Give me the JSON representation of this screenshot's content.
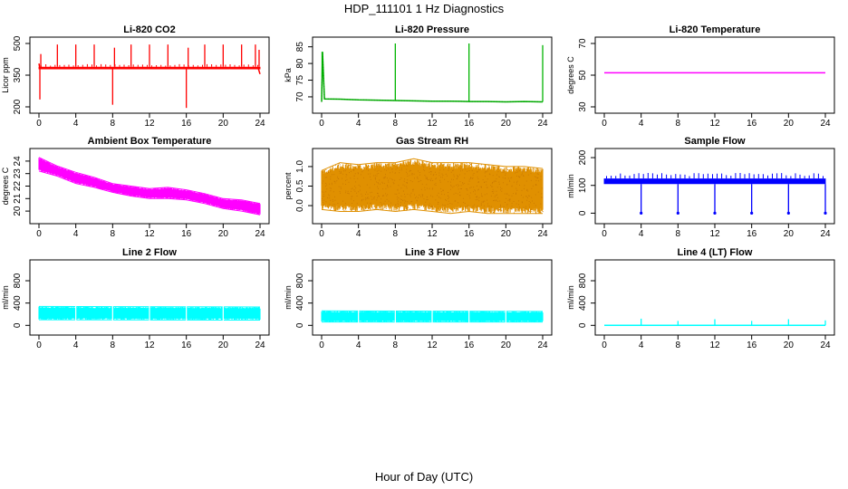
{
  "figure": {
    "title": "HDP_111101  1 Hz Diagnostics",
    "xlabel": "Hour of Day (UTC)"
  },
  "chart_data": [
    {
      "type": "line",
      "title": "Li-820 CO2",
      "ylabel": "Licor ppm",
      "color": "#ff0000",
      "xlim": [
        0,
        24
      ],
      "ylim": [
        200,
        500
      ],
      "xticks": [
        0,
        4,
        8,
        12,
        16,
        20,
        24
      ],
      "yticks": [
        200,
        350,
        500
      ],
      "band": {
        "low": 378,
        "high": 390
      },
      "x": [
        0,
        0.1,
        1,
        2,
        3,
        4,
        5,
        6,
        7,
        8,
        9,
        10,
        11,
        12,
        13,
        14,
        15,
        16,
        17,
        18,
        19,
        20,
        21,
        22,
        23,
        23.8,
        24
      ],
      "y": [
        405,
        382,
        384,
        383,
        384,
        385,
        384,
        383,
        384,
        383,
        384,
        385,
        384,
        383,
        384,
        385,
        384,
        383,
        384,
        384,
        383,
        384,
        384,
        383,
        384,
        384,
        355
      ],
      "spikes": [
        {
          "x": 0.1,
          "y": 235
        },
        {
          "x": 0.2,
          "y": 450
        },
        {
          "x": 2,
          "y": 495
        },
        {
          "x": 4,
          "y": 495
        },
        {
          "x": 6,
          "y": 495
        },
        {
          "x": 8,
          "y": 210
        },
        {
          "x": 8.2,
          "y": 480
        },
        {
          "x": 10,
          "y": 495
        },
        {
          "x": 12,
          "y": 495
        },
        {
          "x": 14,
          "y": 495
        },
        {
          "x": 16,
          "y": 195
        },
        {
          "x": 16.2,
          "y": 480
        },
        {
          "x": 18,
          "y": 495
        },
        {
          "x": 20,
          "y": 495
        },
        {
          "x": 22,
          "y": 495
        },
        {
          "x": 23.5,
          "y": 495
        },
        {
          "x": 23.9,
          "y": 470
        }
      ]
    },
    {
      "type": "line",
      "title": "Li-820 Pressure",
      "ylabel": "kPa",
      "color": "#00b400",
      "xlim": [
        0,
        24
      ],
      "ylim": [
        67,
        86
      ],
      "xticks": [
        0,
        4,
        8,
        12,
        16,
        20,
        24
      ],
      "yticks": [
        70,
        75,
        80,
        85
      ],
      "x": [
        0,
        0.1,
        0.3,
        2,
        4,
        6,
        8,
        10,
        12,
        14,
        16,
        18,
        20,
        22,
        23.9,
        24
      ],
      "y": [
        68.5,
        83.5,
        69.4,
        69.3,
        69.1,
        69.0,
        68.9,
        68.8,
        68.7,
        68.7,
        68.6,
        68.6,
        68.5,
        68.6,
        68.5,
        68.5
      ],
      "spikes": [
        {
          "x": 0.05,
          "y": 83.5
        },
        {
          "x": 8,
          "y": 86
        },
        {
          "x": 16,
          "y": 86
        },
        {
          "x": 24,
          "y": 85.5
        }
      ]
    },
    {
      "type": "line",
      "title": "Li-820 Temperature",
      "ylabel": "degrees C",
      "color": "#ff00ff",
      "xlim": [
        0,
        24
      ],
      "ylim": [
        30,
        70
      ],
      "xticks": [
        0,
        4,
        8,
        12,
        16,
        20,
        24
      ],
      "yticks": [
        30,
        50,
        70
      ],
      "x": [
        0,
        24
      ],
      "y": [
        51.5,
        51.5
      ]
    },
    {
      "type": "area",
      "title": "Ambient Box Temperature",
      "ylabel": "degrees C",
      "color": "#ff00ff",
      "xlim": [
        0,
        24
      ],
      "ylim": [
        19.5,
        24.5
      ],
      "xticks": [
        0,
        4,
        8,
        12,
        16,
        20,
        24
      ],
      "yticks": [
        20,
        21,
        22,
        23,
        24
      ],
      "x": [
        0,
        2,
        4,
        6,
        8,
        10,
        12,
        14,
        16,
        18,
        20,
        22,
        24
      ],
      "upper": [
        24.3,
        23.6,
        23.1,
        22.7,
        22.2,
        22.0,
        21.8,
        21.9,
        21.7,
        21.4,
        21.0,
        20.9,
        20.6
      ],
      "lower": [
        23.2,
        22.8,
        22.2,
        21.9,
        21.5,
        21.2,
        21.0,
        21.0,
        20.9,
        20.6,
        20.2,
        20.0,
        19.7
      ]
    },
    {
      "type": "area",
      "title": "Gas Stream RH",
      "ylabel": "percent",
      "color": "#e09000",
      "xlim": [
        0,
        24
      ],
      "ylim": [
        -0.3,
        1.3
      ],
      "xticks": [
        0,
        4,
        8,
        12,
        16,
        20,
        24
      ],
      "yticks": [
        0.0,
        0.5,
        1.0
      ],
      "x": [
        0,
        2,
        4,
        6,
        8,
        10,
        12,
        14,
        16,
        18,
        20,
        22,
        24
      ],
      "upper": [
        0.9,
        1.1,
        1.05,
        1.1,
        1.1,
        1.2,
        1.1,
        1.1,
        1.1,
        1.05,
        1.0,
        1.0,
        0.95
      ],
      "lower": [
        -0.1,
        -0.15,
        -0.15,
        -0.1,
        -0.15,
        -0.1,
        -0.15,
        -0.2,
        -0.15,
        -0.2,
        -0.2,
        -0.2,
        -0.2
      ]
    },
    {
      "type": "line",
      "title": "Sample Flow",
      "ylabel": "ml/min",
      "color": "#0000ff",
      "xlim": [
        0,
        24
      ],
      "ylim": [
        -15,
        210
      ],
      "xticks": [
        0,
        4,
        8,
        12,
        16,
        20,
        24
      ],
      "yticks": [
        0,
        100,
        200
      ],
      "band": {
        "low": 105,
        "high": 125
      },
      "x": [
        0,
        24
      ],
      "y": [
        115,
        115
      ],
      "spikes": [
        {
          "x": 4,
          "y": 0
        },
        {
          "x": 8,
          "y": 0
        },
        {
          "x": 12,
          "y": 0
        },
        {
          "x": 16,
          "y": 0
        },
        {
          "x": 20,
          "y": 0
        },
        {
          "x": 24,
          "y": 0
        }
      ]
    },
    {
      "type": "area",
      "title": "Line 2 Flow",
      "ylabel": "ml/min",
      "color": "#00ffff",
      "xlim": [
        0,
        24
      ],
      "ylim": [
        -60,
        1060
      ],
      "xticks": [
        0,
        4,
        8,
        12,
        16,
        20,
        24
      ],
      "yticks": [
        0,
        400,
        800
      ],
      "x": [
        0,
        24
      ],
      "upper": [
        340,
        330
      ],
      "lower": [
        100,
        95
      ]
    },
    {
      "type": "area",
      "title": "Line 3 Flow",
      "ylabel": "ml/min",
      "color": "#00ffff",
      "xlim": [
        0,
        24
      ],
      "ylim": [
        -60,
        1060
      ],
      "xticks": [
        0,
        4,
        8,
        12,
        16,
        20,
        24
      ],
      "yticks": [
        0,
        400,
        800
      ],
      "x": [
        0,
        24
      ],
      "upper": [
        260,
        250
      ],
      "lower": [
        60,
        60
      ]
    },
    {
      "type": "line",
      "title": "Line 4 (LT) Flow",
      "ylabel": "ml/min",
      "color": "#00ffff",
      "xlim": [
        0,
        24
      ],
      "ylim": [
        -60,
        1060
      ],
      "xticks": [
        0,
        4,
        8,
        12,
        16,
        20,
        24
      ],
      "yticks": [
        0,
        400,
        800
      ],
      "x": [
        0,
        24
      ],
      "y": [
        0,
        0
      ],
      "spikes": [
        {
          "x": 4,
          "y": 120
        },
        {
          "x": 8,
          "y": 80
        },
        {
          "x": 12,
          "y": 110
        },
        {
          "x": 16,
          "y": 80
        },
        {
          "x": 20,
          "y": 110
        },
        {
          "x": 24,
          "y": 90
        }
      ]
    }
  ]
}
